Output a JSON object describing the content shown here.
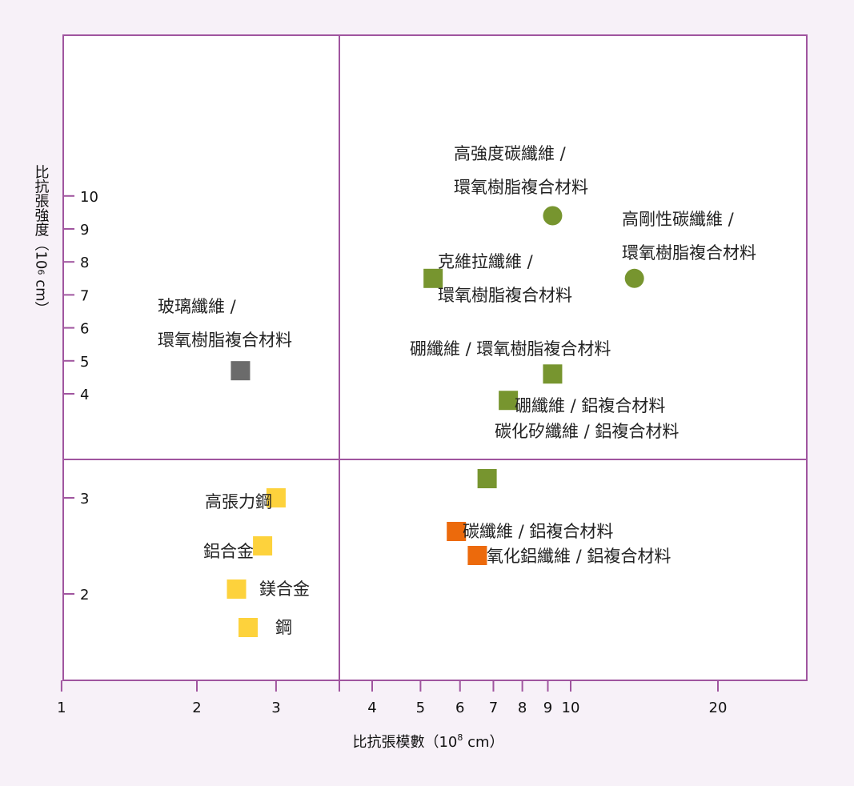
{
  "chart_data": {
    "type": "scatter",
    "xlabel_main": "比抗張模數（10",
    "xlabel_sup": "8",
    "xlabel_tail": " cm）",
    "ylabel_main": "比抗張強度（10",
    "ylabel_sup": "6",
    "ylabel_tail": " cm）",
    "x_scale": "log",
    "xlim": [
      1,
      30
    ],
    "x_ticks": [
      1,
      2,
      3,
      4,
      5,
      6,
      7,
      8,
      9,
      10,
      20
    ],
    "y_upper_ticks": [
      4,
      5,
      6,
      7,
      8,
      9,
      10
    ],
    "y_lower_ticks": [
      2,
      3
    ],
    "colors": {
      "frame": "#a0559f",
      "glass": "#6b6b6b",
      "metal": "#fdd23c",
      "fiber": "#77952f",
      "carbon_metal": "#ec6a0c"
    },
    "points": [
      {
        "label_lines": [
          "玻璃纖維 /",
          "環氧樹脂複合材料"
        ],
        "x": 2.5,
        "y": 4.7,
        "marker": "square",
        "color": "#6b6b6b"
      },
      {
        "label_lines": [
          "高強度碳纖維 /",
          "環氧樹脂複合材料"
        ],
        "x": 9.2,
        "y": 9.4,
        "marker": "circle",
        "color": "#77952f"
      },
      {
        "label_lines": [
          "高剛性碳纖維 /",
          "環氧樹脂複合材料"
        ],
        "x": 13.5,
        "y": 7.5,
        "marker": "circle",
        "color": "#77952f"
      },
      {
        "label_lines": [
          "克維拉纖維 /",
          "環氧樹脂複合材料"
        ],
        "x": 5.3,
        "y": 7.5,
        "marker": "square",
        "color": "#77952f"
      },
      {
        "label_lines": [
          "硼纖維 / 環氧樹脂複合材料"
        ],
        "x": 9.2,
        "y": 4.6,
        "marker": "square",
        "color": "#77952f"
      },
      {
        "label_lines": [
          "硼纖維 / 鋁複合材料"
        ],
        "x": 7.5,
        "y": 3.8,
        "marker": "square",
        "color": "#77952f"
      },
      {
        "label_lines": [
          "碳化矽纖維 / 鋁複合材料"
        ],
        "x": 6.8,
        "y": 3.2,
        "marker": "square",
        "color": "#77952f"
      },
      {
        "label_lines": [
          "高張力鋼"
        ],
        "x": 3.0,
        "y": 3.0,
        "marker": "square",
        "color": "#fdd23c"
      },
      {
        "label_lines": [
          "鋁合金"
        ],
        "x": 2.8,
        "y": 2.5,
        "marker": "square",
        "color": "#fdd23c"
      },
      {
        "label_lines": [
          "鎂合金"
        ],
        "x": 2.45,
        "y": 2.05,
        "marker": "square",
        "color": "#fdd23c"
      },
      {
        "label_lines": [
          "鋼"
        ],
        "x": 2.6,
        "y": 1.65,
        "marker": "square",
        "color": "#fdd23c"
      },
      {
        "label_lines": [
          "碳纖維 / 鋁複合材料"
        ],
        "x": 5.9,
        "y": 2.65,
        "marker": "square",
        "color": "#ec6a0c"
      },
      {
        "label_lines": [
          "氧化鋁纖維 / 鋁複合材料"
        ],
        "x": 6.5,
        "y": 2.4,
        "marker": "square",
        "color": "#ec6a0c"
      }
    ]
  }
}
